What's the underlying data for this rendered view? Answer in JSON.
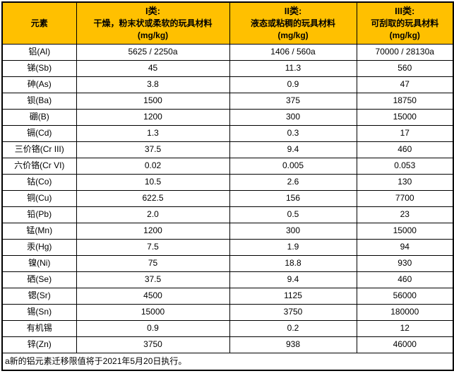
{
  "chart_data": {
    "type": "table",
    "header": {
      "element_label": "元素",
      "columns": [
        {
          "class_label": "I类:",
          "desc": "干燥，粉末状或柔软的玩具材料",
          "unit": "(mg/kg)"
        },
        {
          "class_label": "II类:",
          "desc": "液态或粘稠的玩具材料",
          "unit": "(mg/kg)"
        },
        {
          "class_label": "III类:",
          "desc": "可刮取的玩具材料",
          "unit": "(mg/kg)"
        }
      ]
    },
    "rows": [
      {
        "element": "铝(Al)",
        "values": [
          "5625 / 2250a",
          "1406 / 560a",
          "70000 / 28130a"
        ]
      },
      {
        "element": "锑(Sb)",
        "values": [
          "45",
          "11.3",
          "560"
        ]
      },
      {
        "element": "砷(As)",
        "values": [
          "3.8",
          "0.9",
          "47"
        ]
      },
      {
        "element": "钡(Ba)",
        "values": [
          "1500",
          "375",
          "18750"
        ]
      },
      {
        "element": "硼(B)",
        "values": [
          "1200",
          "300",
          "15000"
        ]
      },
      {
        "element": "镉(Cd)",
        "values": [
          "1.3",
          "0.3",
          "17"
        ]
      },
      {
        "element": "三价铬(Cr III)",
        "values": [
          "37.5",
          "9.4",
          "460"
        ]
      },
      {
        "element": "六价铬(Cr VI)",
        "values": [
          "0.02",
          "0.005",
          "0.053"
        ]
      },
      {
        "element": "钴(Co)",
        "values": [
          "10.5",
          "2.6",
          "130"
        ]
      },
      {
        "element": "铜(Cu)",
        "values": [
          "622.5",
          "156",
          "7700"
        ]
      },
      {
        "element": "铅(Pb)",
        "values": [
          "2.0",
          "0.5",
          "23"
        ]
      },
      {
        "element": "锰(Mn)",
        "values": [
          "1200",
          "300",
          "15000"
        ]
      },
      {
        "element": "汞(Hg)",
        "values": [
          "7.5",
          "1.9",
          "94"
        ]
      },
      {
        "element": "镍(Ni)",
        "values": [
          "75",
          "18.8",
          "930"
        ]
      },
      {
        "element": "硒(Se)",
        "values": [
          "37.5",
          "9.4",
          "460"
        ]
      },
      {
        "element": "锶(Sr)",
        "values": [
          "4500",
          "1125",
          "56000"
        ]
      },
      {
        "element": "锡(Sn)",
        "values": [
          "15000",
          "3750",
          "180000"
        ]
      },
      {
        "element": "有机锡",
        "values": [
          "0.9",
          "0.2",
          "12"
        ]
      },
      {
        "element": "锌(Zn)",
        "values": [
          "3750",
          "938",
          "46000"
        ]
      }
    ],
    "footnote": "a新的铝元素迁移限值将于2021年5月20日执行。"
  },
  "colors": {
    "header_bg": "#FFC000",
    "border": "#000000",
    "text": "#000000",
    "page_bg": "#FFFFFF"
  }
}
